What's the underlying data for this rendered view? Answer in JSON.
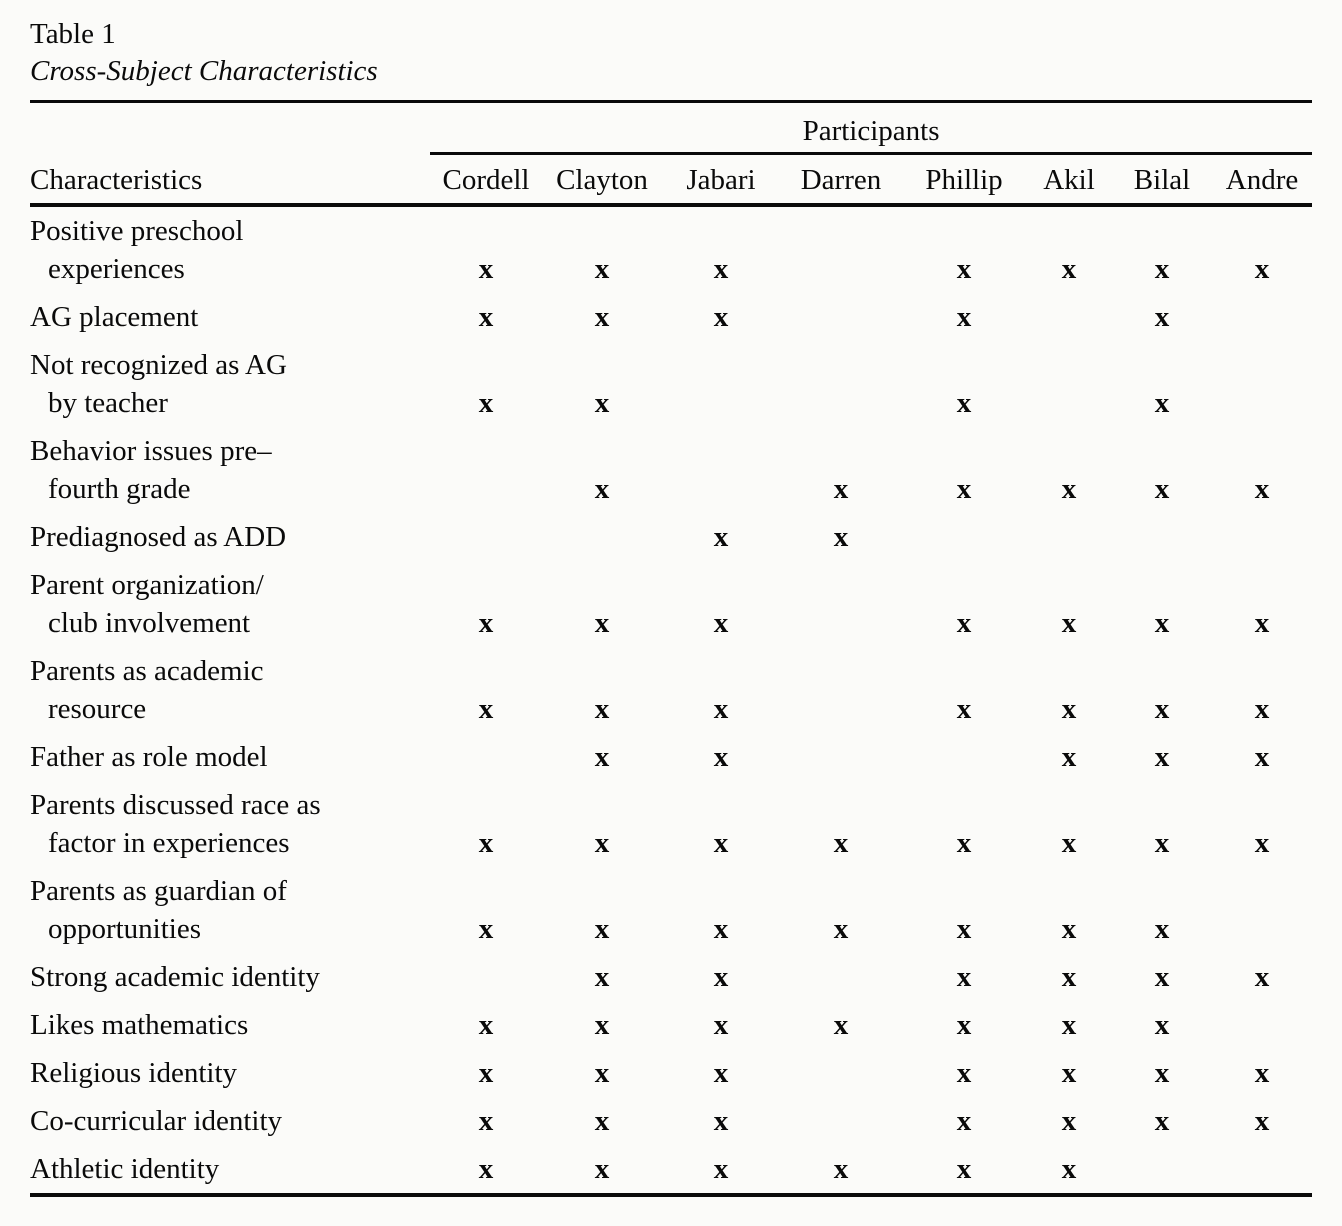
{
  "page": {
    "table_label": "Table 1",
    "table_title": "Cross-Subject Characteristics"
  },
  "table": {
    "group_header": "Participants",
    "row_header": "Characteristics",
    "participants": [
      "Cordell",
      "Clayton",
      "Jabari",
      "Darren",
      "Phillip",
      "Akil",
      "Bilal",
      "Andre"
    ],
    "mark_symbol": "x",
    "rows": [
      {
        "label": "Positive preschool\nexperiences",
        "marks": [
          "x",
          "x",
          "x",
          "",
          "x",
          "x",
          "x",
          "x"
        ]
      },
      {
        "label": "AG placement",
        "marks": [
          "x",
          "x",
          "x",
          "",
          "x",
          "",
          "x",
          ""
        ]
      },
      {
        "label": "Not recognized as AG\nby teacher",
        "marks": [
          "x",
          "x",
          "",
          "",
          "x",
          "",
          "x",
          ""
        ]
      },
      {
        "label": "Behavior issues pre–\nfourth grade",
        "marks": [
          "",
          "x",
          "",
          "x",
          "x",
          "x",
          "x",
          "x"
        ]
      },
      {
        "label": "Prediagnosed as ADD",
        "marks": [
          "",
          "",
          "x",
          "x",
          "",
          "",
          "",
          ""
        ]
      },
      {
        "label": "Parent organization/\nclub involvement",
        "marks": [
          "x",
          "x",
          "x",
          "",
          "x",
          "x",
          "x",
          "x"
        ]
      },
      {
        "label": "Parents as academic\nresource",
        "marks": [
          "x",
          "x",
          "x",
          "",
          "x",
          "x",
          "x",
          "x"
        ]
      },
      {
        "label": "Father as role model",
        "marks": [
          "",
          "x",
          "x",
          "",
          "",
          "x",
          "x",
          "x"
        ]
      },
      {
        "label": "Parents discussed race as\nfactor in experiences",
        "marks": [
          "x",
          "x",
          "x",
          "x",
          "x",
          "x",
          "x",
          "x"
        ]
      },
      {
        "label": "Parents as guardian of\nopportunities",
        "marks": [
          "x",
          "x",
          "x",
          "x",
          "x",
          "x",
          "x",
          ""
        ]
      },
      {
        "label": "Strong academic identity",
        "marks": [
          "",
          "x",
          "x",
          "",
          "x",
          "x",
          "x",
          "x"
        ]
      },
      {
        "label": "Likes mathematics",
        "marks": [
          "x",
          "x",
          "x",
          "x",
          "x",
          "x",
          "x",
          ""
        ]
      },
      {
        "label": "Religious identity",
        "marks": [
          "x",
          "x",
          "x",
          "",
          "x",
          "x",
          "x",
          "x"
        ]
      },
      {
        "label": "Co-curricular identity",
        "marks": [
          "x",
          "x",
          "x",
          "",
          "x",
          "x",
          "x",
          "x"
        ]
      },
      {
        "label": "Athletic identity",
        "marks": [
          "x",
          "x",
          "x",
          "x",
          "x",
          "x",
          "",
          ""
        ]
      }
    ]
  }
}
